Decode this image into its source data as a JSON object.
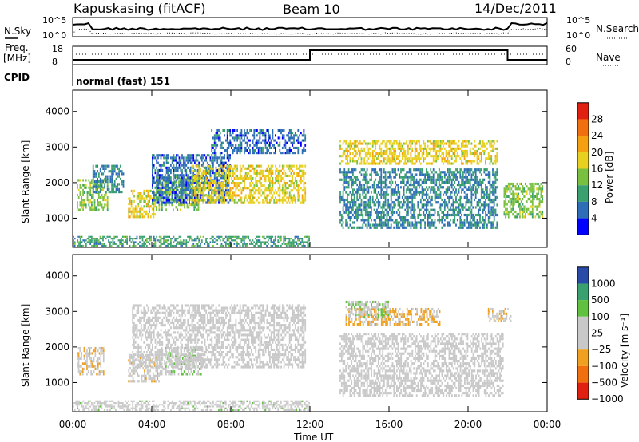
{
  "header": {
    "station": "Kapuskasing (fitACF)",
    "beam": "Beam 10",
    "date": "14/Dec/2011"
  },
  "noise_panel": {
    "left_label": "N.Sky",
    "right_label": "N.Search",
    "left_ticks": [
      "10^5",
      "10^0"
    ],
    "right_ticks": [
      "10^5",
      "10^0"
    ]
  },
  "freq_panel": {
    "left_label_1": "Freq.",
    "left_label_2": "[MHz]",
    "right_label": "Nave",
    "left_ticks": [
      "18",
      "8"
    ],
    "right_ticks": [
      "60",
      "0"
    ]
  },
  "cpid": {
    "label": "CPID",
    "value": "normal (fast) 151"
  },
  "x_axis": {
    "label": "Time UT",
    "ticks": [
      "00:00",
      "04:00",
      "08:00",
      "12:00",
      "16:00",
      "20:00",
      "00:00"
    ]
  },
  "colors": {
    "power": [
      "#0000ff",
      "#2e6eb6",
      "#3aa070",
      "#7ac040",
      "#e8d020",
      "#f5a010",
      "#f07010",
      "#e02010"
    ],
    "velocity": [
      "#2a4aa8",
      "#3aa070",
      "#60c040",
      "#c8c8c8",
      "#c8c8c8",
      "#f0a020",
      "#f07010",
      "#e02010"
    ]
  },
  "chart_data": [
    {
      "type": "heatmap",
      "title": "Power",
      "xlabel": "Time UT",
      "ylabel": "Slant Range [km]",
      "xlim": [
        0,
        24
      ],
      "ylim": [
        180,
        4600
      ],
      "yticks": [
        "1000",
        "2000",
        "3000",
        "4000"
      ],
      "colorbar_label": "Power [dB]",
      "colorbar_ticks": [
        "28",
        "24",
        "20",
        "16",
        "12",
        "8",
        "4"
      ],
      "colorbar_range": [
        0,
        32
      ],
      "regions": [
        {
          "t": [
            0.2,
            1.8
          ],
          "r": [
            1200,
            2100
          ],
          "v": 14
        },
        {
          "t": [
            1.0,
            2.6
          ],
          "r": [
            1700,
            2500
          ],
          "v": 8
        },
        {
          "t": [
            2.8,
            4.2
          ],
          "r": [
            1000,
            1800
          ],
          "v": 18
        },
        {
          "t": [
            4.2,
            6.4
          ],
          "r": [
            1200,
            2200
          ],
          "v": 14
        },
        {
          "t": [
            4.0,
            8.0
          ],
          "r": [
            1400,
            2800
          ],
          "v": 6
        },
        {
          "t": [
            6.0,
            11.8
          ],
          "r": [
            1400,
            2500
          ],
          "v": 18
        },
        {
          "t": [
            7.0,
            11.8
          ],
          "r": [
            2800,
            3500
          ],
          "v": 6
        },
        {
          "t": [
            13.5,
            21.5
          ],
          "r": [
            2500,
            3200
          ],
          "v": 18
        },
        {
          "t": [
            13.5,
            21.5
          ],
          "r": [
            700,
            2400
          ],
          "v": 8
        },
        {
          "t": [
            21.8,
            23.8
          ],
          "r": [
            1000,
            2000
          ],
          "v": 14
        },
        {
          "t": [
            0.0,
            12.0
          ],
          "r": [
            200,
            500
          ],
          "v": 10
        }
      ]
    },
    {
      "type": "heatmap",
      "title": "Velocity",
      "xlabel": "Time UT",
      "ylabel": "Slant Range [km]",
      "xlim": [
        0,
        24
      ],
      "ylim": [
        180,
        4600
      ],
      "yticks": [
        "1000",
        "2000",
        "3000",
        "4000"
      ],
      "colorbar_label": "Velocity [m s⁻¹]",
      "colorbar_ticks": [
        "1000",
        "500",
        "100",
        "25",
        "−25",
        "−100",
        "−500",
        "−1000"
      ],
      "colorbar_range": [
        -1000,
        1000
      ],
      "regions": [
        {
          "t": [
            0.2,
            1.6
          ],
          "r": [
            1200,
            2000
          ],
          "v": -200
        },
        {
          "t": [
            2.8,
            4.4
          ],
          "r": [
            1000,
            1800
          ],
          "v": -150
        },
        {
          "t": [
            4.4,
            6.6
          ],
          "r": [
            1200,
            2000
          ],
          "v": 150
        },
        {
          "t": [
            3.0,
            11.8
          ],
          "r": [
            1400,
            3200
          ],
          "v": 0
        },
        {
          "t": [
            13.8,
            18.6
          ],
          "r": [
            2600,
            3100
          ],
          "v": -300
        },
        {
          "t": [
            13.8,
            16.0
          ],
          "r": [
            2800,
            3300
          ],
          "v": 200
        },
        {
          "t": [
            13.5,
            21.8
          ],
          "r": [
            600,
            2400
          ],
          "v": 0
        },
        {
          "t": [
            21.0,
            22.2
          ],
          "r": [
            2700,
            3100
          ],
          "v": -200
        },
        {
          "t": [
            0.0,
            12.0
          ],
          "r": [
            200,
            500
          ],
          "v": 100
        }
      ]
    }
  ]
}
